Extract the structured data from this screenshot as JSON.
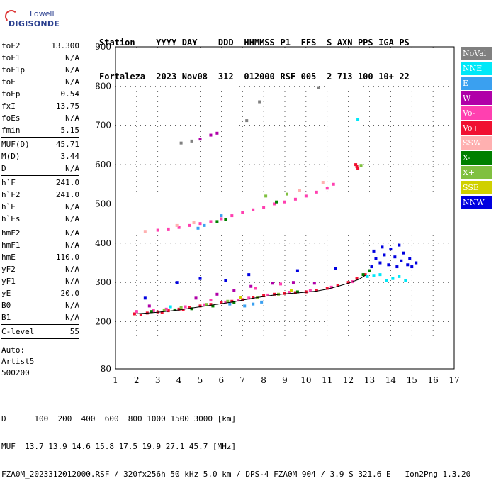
{
  "logo": {
    "line1": "Lowell",
    "line2": "DIGISONDE"
  },
  "header": {
    "row1": [
      "Station",
      "YYYY",
      "DAY",
      "DDD",
      "HHMMSS",
      "P1",
      "FFS",
      "S",
      "AXN",
      "PPS",
      "IGA",
      "PS"
    ],
    "row2": [
      "Fortaleza",
      "2023",
      "Nov08",
      "312",
      "012000",
      "RSF",
      "005",
      "2",
      "713",
      "100",
      "10+",
      "22"
    ]
  },
  "params_group1": [
    {
      "k": "foF2",
      "v": "13.300"
    },
    {
      "k": "foF1",
      "v": "N/A"
    },
    {
      "k": "foF1p",
      "v": "N/A"
    },
    {
      "k": "foE",
      "v": "N/A"
    },
    {
      "k": "foEp",
      "v": "0.54"
    },
    {
      "k": "fxI",
      "v": "13.75"
    },
    {
      "k": "foEs",
      "v": "N/A"
    },
    {
      "k": "fmin",
      "v": "5.15"
    }
  ],
  "params_group2": [
    {
      "k": "MUF(D)",
      "v": "45.71"
    },
    {
      "k": "M(D)",
      "v": "3.44"
    },
    {
      "k": "D",
      "v": "N/A"
    }
  ],
  "params_group3": [
    {
      "k": "h`F",
      "v": "241.0"
    },
    {
      "k": "h`F2",
      "v": "241.0"
    },
    {
      "k": "h`E",
      "v": "N/A"
    },
    {
      "k": "h`Es",
      "v": "N/A"
    }
  ],
  "params_group4": [
    {
      "k": "hmF2",
      "v": "N/A"
    },
    {
      "k": "hmF1",
      "v": "N/A"
    },
    {
      "k": "hmE",
      "v": "110.0"
    },
    {
      "k": "yF2",
      "v": "N/A"
    },
    {
      "k": "yF1",
      "v": "N/A"
    },
    {
      "k": "yE",
      "v": "20.0"
    },
    {
      "k": "B0",
      "v": "N/A"
    },
    {
      "k": "B1",
      "v": "N/A"
    }
  ],
  "params_group5": [
    {
      "k": "C-level",
      "v": "55"
    }
  ],
  "auto": {
    "line1": "Auto:",
    "line2": "Artist5",
    "line3": "500200"
  },
  "legend": [
    {
      "label": "NoVal",
      "color": "#808080"
    },
    {
      "label": "NNE",
      "color": "#00e8f8"
    },
    {
      "label": "E",
      "color": "#3aa0f0"
    },
    {
      "label": "W",
      "color": "#b000a8"
    },
    {
      "label": "Vo-",
      "color": "#ff40b0"
    },
    {
      "label": "Vo+",
      "color": "#f01030"
    },
    {
      "label": "SSW",
      "color": "#ffb0b0"
    },
    {
      "label": "X-",
      "color": "#008000"
    },
    {
      "label": "X+",
      "color": "#80c040"
    },
    {
      "label": "SSE",
      "color": "#d0d000"
    },
    {
      "label": "NNW",
      "color": "#0000e0"
    }
  ],
  "footer": {
    "line1": "D      100  200  400  600  800 1000 1500 3000 [km]",
    "line2": "MUF  13.7 13.9 14.6 15.8 17.5 19.9 27.1 45.7 [MHz]",
    "line3": "FZA0M_2023312012000.RSF / 320fx256h 50 kHz 5.0 km / DPS-4 FZA0M 904 / 3.9 S 321.6 E   Ion2Png 1.3.20"
  },
  "chart_data": {
    "type": "scatter",
    "xlim": [
      1,
      17
    ],
    "ylim": [
      80,
      900
    ],
    "x_ticks": [
      1,
      2,
      3,
      4,
      5,
      6,
      7,
      8,
      9,
      10,
      11,
      12,
      13,
      14,
      15,
      16,
      17
    ],
    "y_ticks": [
      80,
      200,
      300,
      400,
      500,
      600,
      700,
      800,
      900
    ],
    "grid": true,
    "series": [
      {
        "name": "Vo+",
        "color": "#f01030",
        "points": [
          [
            1.9,
            220
          ],
          [
            2.5,
            222
          ],
          [
            3.0,
            225
          ],
          [
            3.5,
            228
          ],
          [
            4.0,
            232
          ],
          [
            4.5,
            236
          ],
          [
            5.0,
            240
          ],
          [
            5.5,
            244
          ],
          [
            6.0,
            248
          ],
          [
            6.5,
            252
          ],
          [
            7.0,
            256
          ],
          [
            7.5,
            262
          ],
          [
            8.0,
            266
          ],
          [
            8.5,
            270
          ],
          [
            9.0,
            272
          ],
          [
            9.5,
            274
          ],
          [
            10.0,
            276
          ],
          [
            10.5,
            280
          ],
          [
            11.0,
            285
          ],
          [
            11.5,
            292
          ],
          [
            12.0,
            300
          ],
          [
            12.4,
            310
          ],
          [
            12.8,
            320
          ],
          [
            2.2,
            218
          ],
          [
            3.2,
            224
          ],
          [
            4.2,
            230
          ],
          [
            12.4,
            595
          ],
          [
            12.35,
            600
          ],
          [
            12.45,
            590
          ]
        ]
      },
      {
        "name": "Vo-",
        "color": "#ff40b0",
        "points": [
          [
            2.0,
            226
          ],
          [
            2.8,
            228
          ],
          [
            3.4,
            232
          ],
          [
            4.3,
            238
          ],
          [
            5.2,
            243
          ],
          [
            6.2,
            250
          ],
          [
            6.8,
            255
          ],
          [
            7.3,
            260
          ],
          [
            8.2,
            268
          ],
          [
            9.2,
            275
          ],
          [
            10.2,
            279
          ],
          [
            11.2,
            288
          ],
          [
            12.2,
            302
          ],
          [
            5.5,
            255
          ],
          [
            7.6,
            285
          ],
          [
            8.8,
            296
          ],
          [
            3.0,
            433
          ],
          [
            3.5,
            436
          ],
          [
            4.0,
            440
          ],
          [
            4.5,
            445
          ],
          [
            5.0,
            450
          ],
          [
            5.5,
            455
          ],
          [
            6.0,
            462
          ],
          [
            6.5,
            470
          ],
          [
            7.0,
            478
          ],
          [
            7.5,
            485
          ],
          [
            8.0,
            490
          ],
          [
            8.5,
            500
          ],
          [
            9.0,
            505
          ],
          [
            9.5,
            512
          ],
          [
            10.0,
            520
          ],
          [
            10.5,
            530
          ],
          [
            11.0,
            540
          ],
          [
            11.3,
            550
          ]
        ]
      },
      {
        "name": "W",
        "color": "#b000a8",
        "points": [
          [
            2.6,
            240
          ],
          [
            4.8,
            260
          ],
          [
            5.8,
            270
          ],
          [
            6.6,
            280
          ],
          [
            7.4,
            290
          ],
          [
            8.4,
            298
          ],
          [
            9.4,
            300
          ],
          [
            10.4,
            298
          ],
          [
            5.0,
            665
          ],
          [
            5.5,
            675
          ],
          [
            5.8,
            680
          ]
        ]
      },
      {
        "name": "NNE",
        "color": "#00e8f8",
        "points": [
          [
            13.5,
            320
          ],
          [
            13.8,
            305
          ],
          [
            14.1,
            310
          ],
          [
            14.4,
            315
          ],
          [
            14.7,
            305
          ],
          [
            12.9,
            315
          ],
          [
            13.2,
            318
          ],
          [
            12.45,
            715
          ],
          [
            3.6,
            238
          ]
        ]
      },
      {
        "name": "E",
        "color": "#3aa0f0",
        "points": [
          [
            6.4,
            245
          ],
          [
            7.1,
            240
          ],
          [
            7.5,
            245
          ],
          [
            7.9,
            250
          ],
          [
            4.9,
            438
          ],
          [
            5.2,
            445
          ],
          [
            6.0,
            470
          ]
        ]
      },
      {
        "name": "X-",
        "color": "#008000",
        "points": [
          [
            2.7,
            226
          ],
          [
            3.8,
            230
          ],
          [
            4.6,
            233
          ],
          [
            5.6,
            240
          ],
          [
            6.6,
            248
          ],
          [
            9.6,
            276
          ],
          [
            12.7,
            320
          ],
          [
            13.0,
            330
          ],
          [
            5.8,
            455
          ],
          [
            6.2,
            460
          ],
          [
            8.6,
            505
          ]
        ]
      },
      {
        "name": "X+",
        "color": "#80c040",
        "points": [
          [
            3.3,
            230
          ],
          [
            4.1,
            236
          ],
          [
            5.3,
            244
          ],
          [
            6.3,
            252
          ],
          [
            7.7,
            262
          ],
          [
            8.7,
            270
          ],
          [
            12.6,
            598
          ],
          [
            8.1,
            520
          ],
          [
            9.1,
            525
          ]
        ]
      },
      {
        "name": "SSW",
        "color": "#ffb0b0",
        "points": [
          [
            2.4,
            430
          ],
          [
            3.9,
            445
          ],
          [
            4.7,
            452
          ],
          [
            9.7,
            535
          ],
          [
            10.8,
            555
          ]
        ]
      },
      {
        "name": "SSE",
        "color": "#d0d000",
        "points": [
          [
            6.9,
            262
          ],
          [
            9.3,
            280
          ]
        ]
      },
      {
        "name": "NNW",
        "color": "#0000e0",
        "points": [
          [
            13.2,
            380
          ],
          [
            13.3,
            360
          ],
          [
            13.5,
            350
          ],
          [
            13.7,
            370
          ],
          [
            13.9,
            345
          ],
          [
            14.0,
            385
          ],
          [
            14.2,
            365
          ],
          [
            14.4,
            395
          ],
          [
            14.5,
            355
          ],
          [
            14.6,
            375
          ],
          [
            14.8,
            345
          ],
          [
            14.9,
            360
          ],
          [
            15.0,
            340
          ],
          [
            15.2,
            350
          ],
          [
            13.1,
            340
          ],
          [
            13.6,
            390
          ],
          [
            14.3,
            340
          ],
          [
            3.9,
            300
          ],
          [
            5.0,
            310
          ],
          [
            6.2,
            305
          ],
          [
            7.3,
            320
          ],
          [
            9.6,
            330
          ],
          [
            11.4,
            335
          ],
          [
            2.4,
            260
          ]
        ]
      },
      {
        "name": "NoVal",
        "color": "#808080",
        "points": [
          [
            4.1,
            655
          ],
          [
            4.6,
            660
          ],
          [
            7.2,
            712
          ],
          [
            7.8,
            760
          ],
          [
            10.6,
            796
          ]
        ]
      }
    ],
    "trace": {
      "x": [
        1.9,
        2.5,
        3.0,
        3.5,
        4.0,
        4.5,
        5.0,
        5.5,
        6.0,
        6.5,
        7.0,
        7.5,
        8.0,
        8.5,
        9.0,
        9.5,
        10.0,
        10.5,
        11.0,
        11.5,
        12.0,
        12.5,
        12.8
      ],
      "y": [
        220,
        222,
        224,
        227,
        230,
        234,
        238,
        242,
        246,
        250,
        255,
        260,
        264,
        268,
        271,
        273,
        275,
        278,
        283,
        290,
        298,
        308,
        318
      ]
    }
  }
}
